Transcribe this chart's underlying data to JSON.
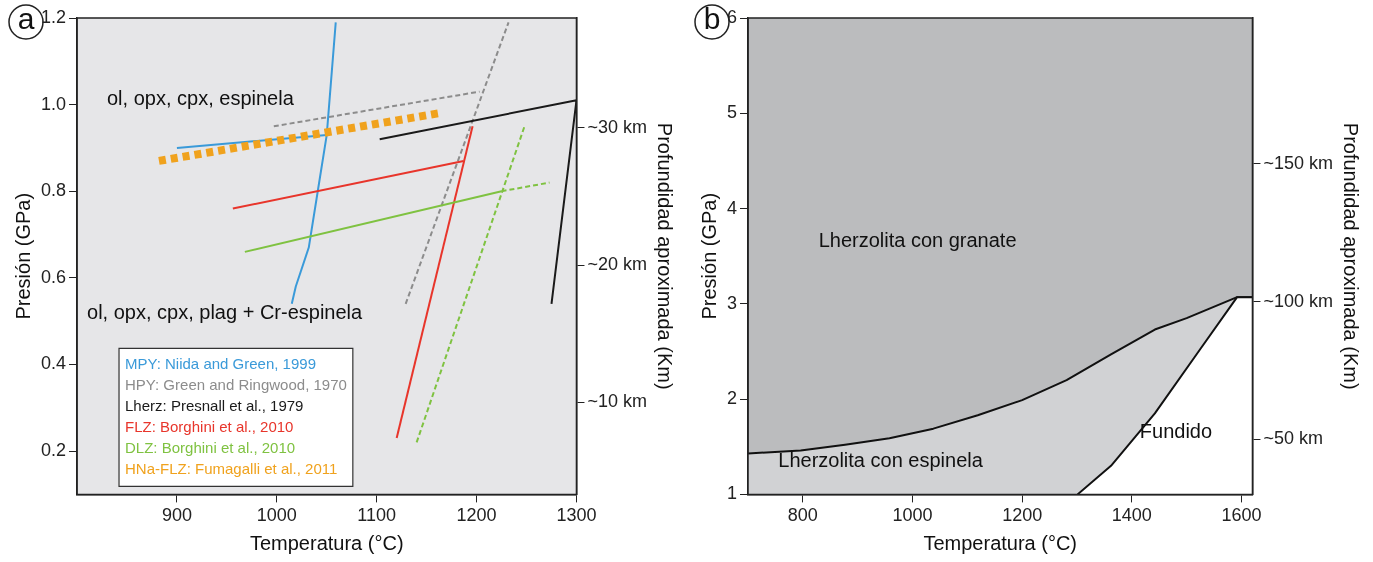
{
  "chart_data": [
    {
      "type": "line",
      "title": "a",
      "xlabel": "Temperatura (°C)",
      "ylabel": "Presión (GPa)",
      "y2label": "Profundidad aproximada (Km)",
      "xlim": [
        800,
        1300
      ],
      "xticks": [
        900,
        1000,
        1100,
        1200,
        1300
      ],
      "ylim": [
        0.1,
        1.2
      ],
      "yticks": [
        0.2,
        0.4,
        0.6,
        0.8,
        {
          "value": 1,
          "label": "1.0"
        },
        1.2
      ],
      "y2lim": [
        3.3,
        38
      ],
      "y2ticks": [
        {
          "value": 10,
          "label": "~10 km"
        },
        {
          "value": 20,
          "label": "~20 km"
        },
        {
          "value": 30,
          "label": "~30 km"
        }
      ],
      "grid": false,
      "legend": "bottom left",
      "annotations": [
        "ol, opx, cpx, espinela",
        "ol, opx, cpx, plag + Cr-espinela"
      ],
      "series": [
        {
          "name": "MPY: Niida and Green, 1999",
          "color": "#3a9ad9",
          "line_style": "solid",
          "x": [
            1015,
            1019,
            1032,
            1041,
            1050,
            1059
          ],
          "values": [
            0.54,
            0.58,
            0.67,
            0.8,
            0.93,
            1.19
          ]
        },
        {
          "color": "#3a9ad9",
          "line_style": "solid",
          "x": [
            900,
            1050
          ],
          "values": [
            0.9,
            0.93
          ]
        },
        {
          "name": "HPY: Green and Ringwood, 1970",
          "color": "#8c8c8c",
          "line_style": "dashed",
          "x": [
            1129,
            1232
          ],
          "values": [
            0.54,
            1.19
          ]
        },
        {
          "color": "#8c8c8c",
          "line_style": "dashed",
          "x": [
            997,
            1203
          ],
          "values": [
            0.95,
            1.03
          ]
        },
        {
          "name": "Lherz: Presnall et al., 1979",
          "color": "#1a1a1a",
          "line_style": "solid",
          "x": [
            1103,
            1300,
            1275
          ],
          "values": [
            0.92,
            1.01,
            0.54
          ]
        },
        {
          "name": "FLZ: Borghini et al., 2010",
          "color": "#e8352b",
          "line_style": "solid",
          "x": [
            1120,
            1196
          ],
          "values": [
            0.23,
            0.95
          ]
        },
        {
          "color": "#e8352b",
          "line_style": "solid",
          "x": [
            956,
            1187
          ],
          "values": [
            0.76,
            0.87
          ]
        },
        {
          "name": "DLZ: Borghini et al., 2010",
          "color": "#7fc241",
          "line_style": "solid",
          "x": [
            968,
            1225
          ],
          "values": [
            0.66,
            0.8
          ]
        },
        {
          "color": "#7fc241",
          "line_style": "dashed",
          "x": [
            1225,
            1273
          ],
          "values": [
            0.8,
            0.82
          ]
        },
        {
          "color": "#7fc241",
          "line_style": "dashed",
          "x": [
            1140,
            1248
          ],
          "values": [
            0.22,
            0.95
          ]
        },
        {
          "name": "HNa-FLZ: Fumagalli et al., 2011",
          "color": "#f0a21d",
          "line_style": "dotted",
          "x": [
            882,
            1162
          ],
          "values": [
            0.87,
            0.98
          ]
        }
      ]
    },
    {
      "type": "area",
      "title": "b",
      "xlabel": "Temperatura (°C)",
      "ylabel": "Presión (GPa)",
      "y2label": "Profundidad aproximada (Km)",
      "xlim": [
        700,
        1620
      ],
      "xticks": [
        800,
        1000,
        1200,
        1400,
        1600
      ],
      "ylim": [
        1,
        6
      ],
      "yticks": [
        1,
        2,
        3,
        4,
        5,
        6
      ],
      "y2lim": [
        30,
        203
      ],
      "y2ticks": [
        {
          "value": 50,
          "label": "~50 km"
        },
        {
          "value": 100,
          "label": "~100 km"
        },
        {
          "value": 150,
          "label": "~150 km"
        }
      ],
      "grid": false,
      "annotations": [
        "Lherzolita con granate",
        "Lherzolita con espinela",
        "Fundido"
      ],
      "series": [
        {
          "color": "#d1d2d4",
          "x": [
            700,
            796,
            877,
            958,
            1038,
            1119,
            1200,
            1281,
            1362,
            1442,
            1500,
            1592,
            1620
          ],
          "values": [
            1.43,
            1.46,
            1.52,
            1.59,
            1.69,
            1.83,
            1.99,
            2.2,
            2.47,
            2.73,
            2.85,
            3.07,
            3.07
          ]
        },
        {
          "color": "#ffffff",
          "x": [
            1301,
            1362,
            1442,
            1523,
            1592,
            1620
          ],
          "values": [
            1,
            1.3,
            1.85,
            2.51,
            3.07,
            3.07
          ]
        }
      ]
    }
  ]
}
